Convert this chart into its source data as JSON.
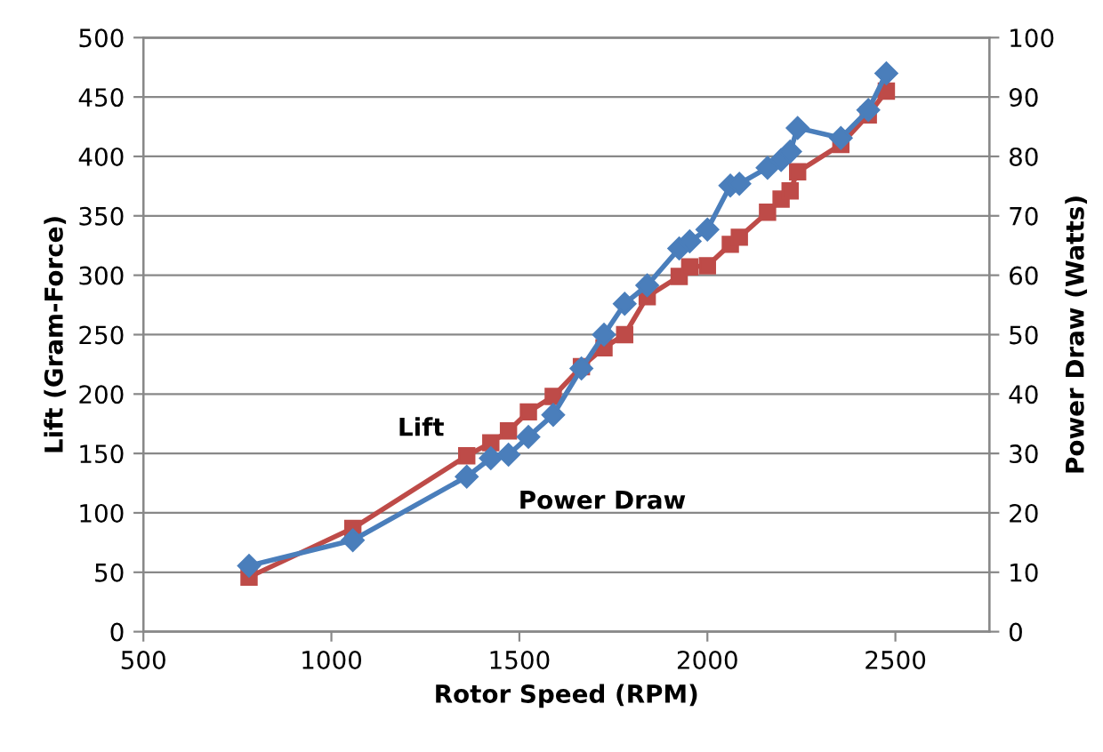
{
  "chart_data": {
    "type": "line",
    "xlabel": "Rotor Speed (RPM)",
    "ylabel": "Lift (Gram-Force)",
    "y2label": "Power Draw (Watts)",
    "x": [
      781,
      1057,
      1360,
      1424,
      1471,
      1524,
      1590,
      1665,
      1725,
      1780,
      1840,
      1925,
      1953,
      2000,
      2061,
      2085,
      2160,
      2196,
      2220,
      2240,
      2355,
      2428,
      2476
    ],
    "series": [
      {
        "name": "Lift",
        "color": "#be4b48",
        "marker": "square",
        "values": [
          46,
          87,
          148,
          159,
          169,
          185,
          198,
          223,
          239,
          250,
          282,
          299,
          307,
          308,
          326,
          332,
          353,
          364,
          371,
          387,
          410,
          435,
          455
        ]
      },
      {
        "name": "Power Draw",
        "color": "#4a7ebb",
        "marker": "diamond",
        "axis": "y2",
        "values": [
          11.1,
          15.4,
          26.1,
          29.2,
          29.8,
          32.8,
          36.5,
          44.3,
          50,
          55.2,
          58.3,
          64.5,
          65.7,
          67.7,
          75.1,
          75.4,
          78.1,
          79.4,
          80.8,
          84.8,
          83.1,
          87.8,
          94
        ]
      }
    ],
    "xlim": [
      500,
      2750
    ],
    "xticks": [
      500,
      1000,
      1500,
      2000,
      2500
    ],
    "ylim": [
      0,
      500
    ],
    "yticks": [
      0,
      50,
      100,
      150,
      200,
      250,
      300,
      350,
      400,
      450,
      500
    ],
    "y2lim": [
      0,
      100
    ],
    "y2ticks": [
      0,
      10,
      20,
      30,
      40,
      50,
      60,
      70,
      80,
      90,
      100
    ],
    "grid": "y",
    "line_style": "solid"
  }
}
